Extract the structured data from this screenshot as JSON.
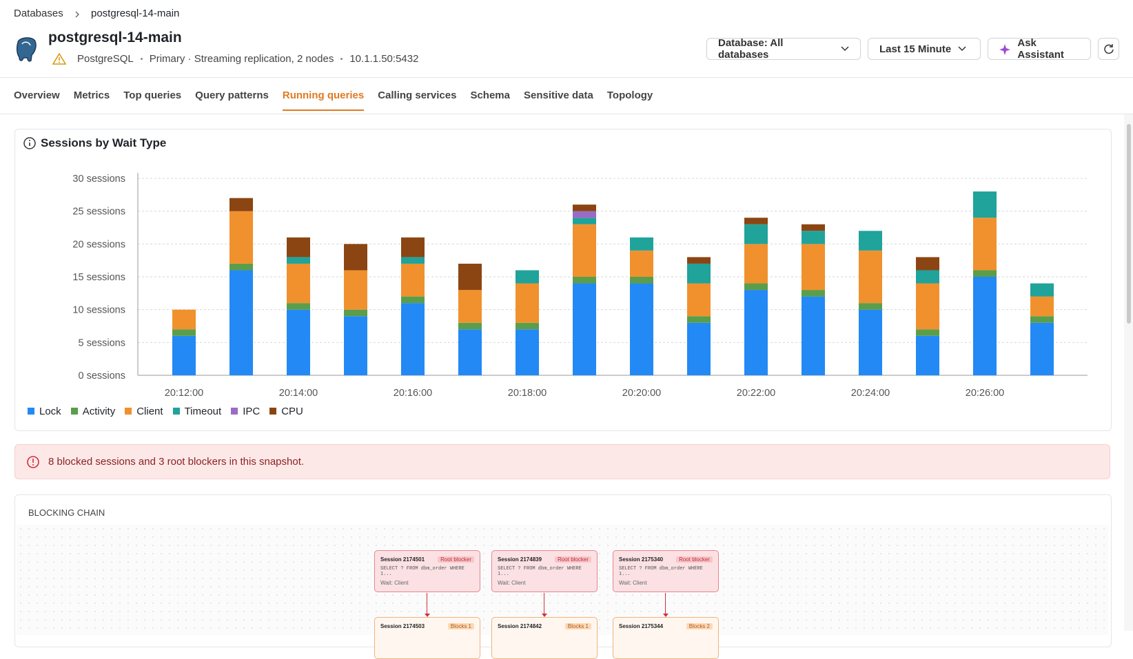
{
  "breadcrumb": [
    "Databases",
    "postgresql-14-main"
  ],
  "header": {
    "title": "postgresql-14-main",
    "meta": [
      "PostgreSQL",
      "Primary · Streaming replication, 2 nodes",
      "10.1.1.50:5432"
    ],
    "buttons": [
      "Database: All databases",
      "Last 15 Minute",
      "Ask Assistant"
    ]
  },
  "tabs": [
    "Overview",
    "Metrics",
    "Top queries",
    "Query patterns",
    "Running queries",
    "Calling services",
    "Schema",
    "Sensitive data",
    "Topology"
  ],
  "active_tab": 4,
  "chart_data": {
    "type": "bar",
    "stacked": true,
    "title": "Sessions by Wait Type",
    "categories": [
      "20:12:00",
      null,
      "20:14:00",
      null,
      "20:16:00",
      null,
      "20:18:00",
      null,
      "20:20:00",
      null,
      "20:22:00",
      null,
      "20:24:00",
      null,
      "20:26:00",
      null
    ],
    "series": [
      {
        "name": "Lock",
        "color": "#2389f5",
        "values": [
          6,
          16,
          10,
          9,
          11,
          7,
          7,
          14,
          14,
          8,
          13,
          12,
          10,
          6,
          15,
          8
        ]
      },
      {
        "name": "Activity",
        "color": "#5a9e4b",
        "values": [
          1,
          1,
          1,
          1,
          1,
          1,
          1,
          1,
          1,
          1,
          1,
          1,
          1,
          1,
          1,
          1
        ]
      },
      {
        "name": "Client",
        "color": "#f0912e",
        "values": [
          3,
          8,
          6,
          6,
          5,
          5,
          6,
          8,
          4,
          5,
          6,
          7,
          8,
          7,
          8,
          3
        ]
      },
      {
        "name": "Timeout",
        "color": "#20a39a",
        "values": [
          0,
          0,
          1,
          0,
          1,
          0,
          2,
          1,
          2,
          3,
          3,
          2,
          3,
          2,
          4,
          2
        ]
      },
      {
        "name": "IPC",
        "color": "#9b6bc8",
        "values": [
          0,
          0,
          0,
          0,
          0,
          0,
          0,
          1,
          0,
          0,
          0,
          0,
          0,
          0,
          0,
          0
        ]
      },
      {
        "name": "CPU",
        "color": "#8b4513",
        "values": [
          0,
          2,
          3,
          4,
          3,
          4,
          0,
          1,
          0,
          1,
          1,
          1,
          0,
          2,
          0,
          0
        ]
      }
    ],
    "ylim": [
      0,
      30
    ],
    "yticks": [
      {
        "value": 0,
        "label": "0 sessions"
      },
      {
        "value": 5,
        "label": "5 sessions"
      },
      {
        "value": 10,
        "label": "10 sessions"
      },
      {
        "value": 15,
        "label": "15 sessions"
      },
      {
        "value": 20,
        "label": "20 sessions"
      },
      {
        "value": 25,
        "label": "25 sessions"
      },
      {
        "value": 30,
        "label": "30 sessions"
      }
    ],
    "grid": true,
    "legend": "bottom-left"
  },
  "alert": "8 blocked sessions and 3 root blockers in this snapshot.",
  "blocking_chain": {
    "title": "BLOCKING CHAIN",
    "roots": [
      {
        "session": "Session 2174501",
        "badge": "Root blocker",
        "query": "SELECT ? FROM dbm_order WHERE 1...",
        "wait": "Wait: Client"
      },
      {
        "session": "Session 2174839",
        "badge": "Root blocker",
        "query": "SELECT ? FROM dbm_order WHERE 1...",
        "wait": "Wait: Client"
      },
      {
        "session": "Session 2175340",
        "badge": "Root blocker",
        "query": "SELECT ? FROM dbm_order WHERE 1...",
        "wait": "Wait: Client"
      }
    ],
    "blocked": [
      {
        "session": "Session 2174503",
        "badge": "Blocks 1"
      },
      {
        "session": "Session 2174842",
        "badge": "Blocks 1"
      },
      {
        "session": "Session 2175344",
        "badge": "Blocks 2"
      }
    ]
  }
}
